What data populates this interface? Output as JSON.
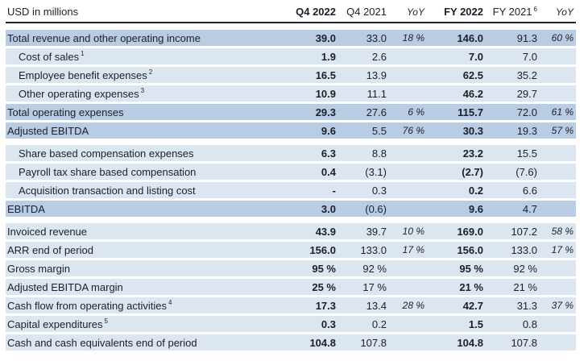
{
  "title": "USD in millions",
  "columns": [
    {
      "label": "Q4 2022",
      "emphasis": "bold"
    },
    {
      "label": "Q4 2021",
      "emphasis": "normal"
    },
    {
      "label": "YoY",
      "emphasis": "italic"
    },
    {
      "label": "FY 2022",
      "emphasis": "bold"
    },
    {
      "label": "FY 2021",
      "emphasis": "normal",
      "footnote": "6"
    },
    {
      "label": "YoY",
      "emphasis": "italic"
    }
  ],
  "colors": {
    "row_highlight": "#b8cce4",
    "row_light": "#dce6f1",
    "header_rule": "#20222c",
    "text": "#1c1f2a"
  },
  "sections": [
    {
      "name": "operating-results",
      "rows": [
        {
          "label": "Total revenue and other operating income",
          "highlight": true,
          "indent": false,
          "values": [
            "39.0",
            "33.0",
            "18 %",
            "146.0",
            "91.3",
            "60 %"
          ]
        },
        {
          "label": "Cost of sales",
          "footnote": "1",
          "highlight": false,
          "indent": true,
          "values": [
            "1.9",
            "2.6",
            "",
            "7.0",
            "7.0",
            ""
          ]
        },
        {
          "label": "Employee benefit expenses",
          "footnote": "2",
          "highlight": false,
          "indent": true,
          "values": [
            "16.5",
            "13.9",
            "",
            "62.5",
            "35.2",
            ""
          ]
        },
        {
          "label": "Other operating expenses",
          "footnote": "3",
          "highlight": false,
          "indent": true,
          "values": [
            "10.9",
            "11.1",
            "",
            "46.2",
            "29.7",
            ""
          ]
        },
        {
          "label": "Total operating expenses",
          "highlight": true,
          "indent": false,
          "values": [
            "29.3",
            "27.6",
            "6 %",
            "115.7",
            "72.0",
            "61 %"
          ]
        },
        {
          "label": "Adjusted EBITDA",
          "highlight": true,
          "indent": false,
          "values": [
            "9.6",
            "5.5",
            "76 %",
            "30.3",
            "19.3",
            "57 %"
          ]
        }
      ]
    },
    {
      "name": "ebitda-bridge",
      "rows": [
        {
          "label": "Share based compensation expenses",
          "highlight": false,
          "indent": true,
          "values": [
            "6.3",
            "8.8",
            "",
            "23.2",
            "15.5",
            ""
          ]
        },
        {
          "label": "Payroll tax share based compensation",
          "highlight": false,
          "indent": true,
          "values": [
            "0.4",
            "(3.1)",
            "",
            "(2.7)",
            "(7.6)",
            ""
          ]
        },
        {
          "label": "Acquisition transaction and listing cost",
          "highlight": false,
          "indent": true,
          "values": [
            "-",
            "0.3",
            "",
            "0.2",
            "6.6",
            ""
          ]
        },
        {
          "label": "EBITDA",
          "highlight": true,
          "indent": false,
          "values": [
            "3.0",
            "(0.6)",
            "",
            "9.6",
            "4.7",
            ""
          ]
        }
      ]
    },
    {
      "name": "key-metrics",
      "rows": [
        {
          "label": "Invoiced revenue",
          "highlight": false,
          "indent": false,
          "values": [
            "43.9",
            "39.7",
            "10 %",
            "169.0",
            "107.2",
            "58 %"
          ]
        },
        {
          "label": "ARR end of period",
          "highlight": false,
          "indent": false,
          "values": [
            "156.0",
            "133.0",
            "17 %",
            "156.0",
            "133.0",
            "17 %"
          ]
        },
        {
          "label": "Gross margin",
          "highlight": false,
          "indent": false,
          "values": [
            "95 %",
            "92 %",
            "",
            "95 %",
            "92 %",
            ""
          ]
        },
        {
          "label": "Adjusted EBITDA margin",
          "highlight": false,
          "indent": false,
          "values": [
            "25 %",
            "17 %",
            "",
            "21 %",
            "21 %",
            ""
          ]
        },
        {
          "label": "Cash flow from operating activities",
          "footnote": "4",
          "highlight": false,
          "indent": false,
          "values": [
            "17.3",
            "13.4",
            "28 %",
            "42.7",
            "31.3",
            "37 %"
          ]
        },
        {
          "label": "Capital expenditures",
          "footnote": "5",
          "highlight": false,
          "indent": false,
          "values": [
            "0.3",
            "0.2",
            "",
            "1.5",
            "0.8",
            ""
          ]
        },
        {
          "label": "Cash and cash equivalents end of period",
          "highlight": false,
          "indent": false,
          "values": [
            "104.8",
            "107.8",
            "",
            "104.8",
            "107.8",
            ""
          ]
        }
      ]
    }
  ]
}
